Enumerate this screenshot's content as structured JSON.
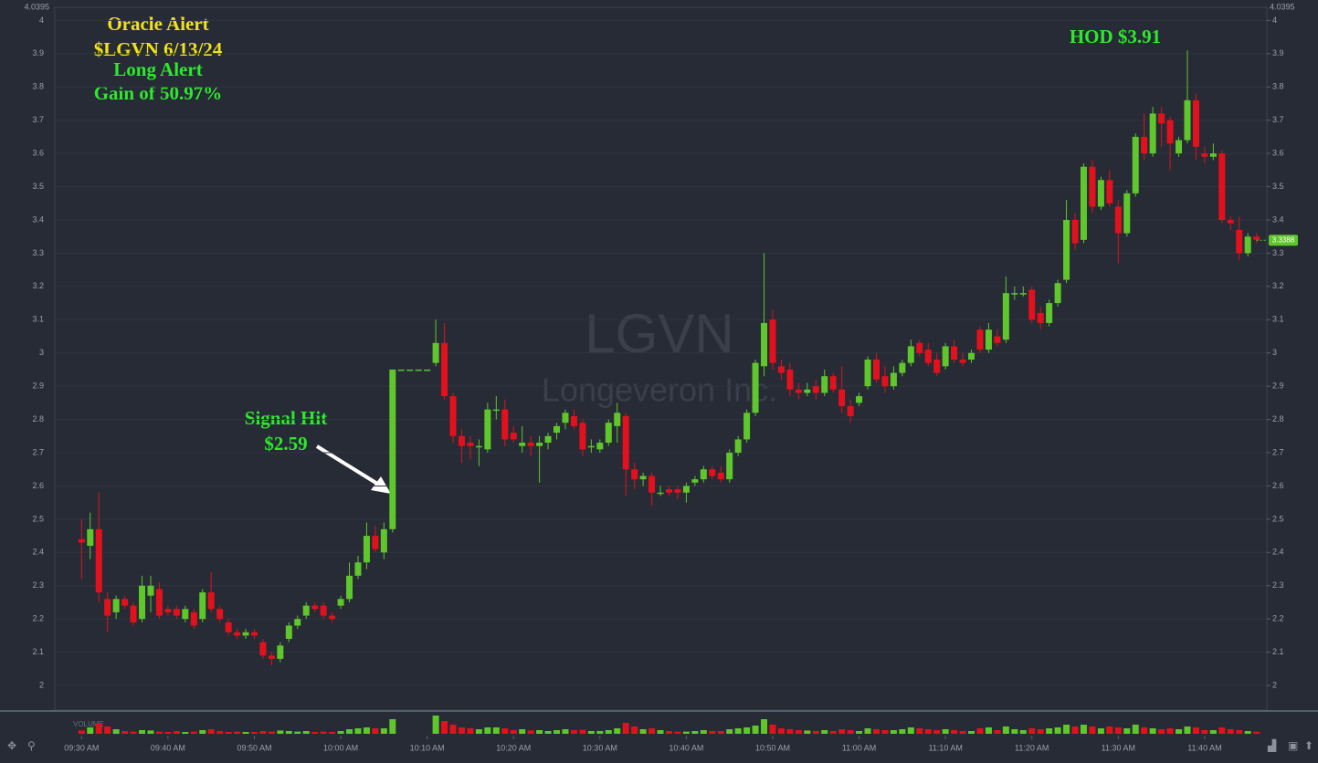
{
  "chart_data": {
    "type": "candlestick",
    "watermark": "LGVN",
    "watermark_sub": "Longeveron Inc.",
    "annotations": [
      "Oracle Alert",
      "$LGVN 6/13/24",
      "Long Alert",
      "Gain of 50.97%",
      "Signal Hit",
      "$2.59",
      "HOD $3.91"
    ],
    "volume_label": "VOLUME",
    "up_color": "#5fc72c",
    "down_color": "#e3111d",
    "ylim": [
      1.926,
      4.0395
    ],
    "yticks": [
      2,
      2.1,
      2.2,
      2.3,
      2.4,
      2.5,
      2.6,
      2.7,
      2.8,
      2.9,
      3,
      3.1,
      3.2,
      3.3,
      3.4,
      3.5,
      3.6,
      3.7,
      3.8,
      3.9,
      4
    ],
    "last_price": 3.3388,
    "xlim": [
      -3.1,
      137.2
    ],
    "xticks": [
      {
        "value": 0,
        "label": "09:30 AM"
      },
      {
        "value": 10,
        "label": "09:40 AM"
      },
      {
        "value": 20,
        "label": "09:50 AM"
      },
      {
        "value": 30,
        "label": "10:00 AM"
      },
      {
        "value": 40,
        "label": "10:10 AM"
      },
      {
        "value": 50,
        "label": "10:20 AM"
      },
      {
        "value": 60,
        "label": "10:30 AM"
      },
      {
        "value": 70,
        "label": "10:40 AM"
      },
      {
        "value": 80,
        "label": "10:50 AM"
      },
      {
        "value": 90,
        "label": "11:00 AM"
      },
      {
        "value": 100,
        "label": "11:10 AM"
      },
      {
        "value": 110,
        "label": "11:20 AM"
      },
      {
        "value": 120,
        "label": "11:30 AM"
      },
      {
        "value": 130,
        "label": "11:40 AM"
      }
    ],
    "candles": [
      [
        2.44,
        2.5,
        2.32,
        2.43
      ],
      [
        2.42,
        2.52,
        2.38,
        2.47
      ],
      [
        2.47,
        2.58,
        2.25,
        2.28
      ],
      [
        2.26,
        2.28,
        2.16,
        2.21
      ],
      [
        2.22,
        2.27,
        2.2,
        2.26
      ],
      [
        2.26,
        2.27,
        2.23,
        2.24
      ],
      [
        2.24,
        2.25,
        2.18,
        2.19
      ],
      [
        2.2,
        2.33,
        2.19,
        2.3
      ],
      [
        2.27,
        2.33,
        2.22,
        2.3
      ],
      [
        2.29,
        2.31,
        2.2,
        2.21
      ],
      [
        2.23,
        2.24,
        2.21,
        2.22
      ],
      [
        2.23,
        2.24,
        2.2,
        2.21
      ],
      [
        2.2,
        2.24,
        2.19,
        2.23
      ],
      [
        2.22,
        2.23,
        2.17,
        2.18
      ],
      [
        2.2,
        2.29,
        2.19,
        2.28
      ],
      [
        2.28,
        2.34,
        2.22,
        2.23
      ],
      [
        2.23,
        2.24,
        2.19,
        2.2
      ],
      [
        2.19,
        2.2,
        2.15,
        2.16
      ],
      [
        2.16,
        2.17,
        2.14,
        2.15
      ],
      [
        2.15,
        2.17,
        2.14,
        2.16
      ],
      [
        2.16,
        2.17,
        2.14,
        2.15
      ],
      [
        2.13,
        2.14,
        2.08,
        2.09
      ],
      [
        2.09,
        2.1,
        2.06,
        2.08
      ],
      [
        2.08,
        2.13,
        2.07,
        2.12
      ],
      [
        2.14,
        2.19,
        2.13,
        2.18
      ],
      [
        2.18,
        2.21,
        2.17,
        2.2
      ],
      [
        2.21,
        2.25,
        2.2,
        2.24
      ],
      [
        2.24,
        2.25,
        2.22,
        2.23
      ],
      [
        2.24,
        2.25,
        2.2,
        2.21
      ],
      [
        2.21,
        2.22,
        2.19,
        2.2
      ],
      [
        2.24,
        2.27,
        2.23,
        2.26
      ],
      [
        2.26,
        2.37,
        2.25,
        2.33
      ],
      [
        2.33,
        2.39,
        2.32,
        2.37
      ],
      [
        2.37,
        2.49,
        2.35,
        2.45
      ],
      [
        2.45,
        2.48,
        2.4,
        2.41
      ],
      [
        2.4,
        2.49,
        2.38,
        2.47
      ],
      [
        2.47,
        2.95,
        2.46,
        2.95
      ],
      [
        2.95,
        2.95,
        2.95,
        2.95
      ],
      [
        2.95,
        2.95,
        2.95,
        2.95
      ],
      [
        2.95,
        2.95,
        2.95,
        2.95
      ],
      [
        2.95,
        2.95,
        2.95,
        2.95
      ],
      [
        2.97,
        3.1,
        2.96,
        3.03
      ],
      [
        3.03,
        3.09,
        2.86,
        2.87
      ],
      [
        2.87,
        2.88,
        2.73,
        2.75
      ],
      [
        2.75,
        2.77,
        2.67,
        2.72
      ],
      [
        2.73,
        2.75,
        2.68,
        2.72
      ],
      [
        2.72,
        2.74,
        2.66,
        2.72
      ],
      [
        2.71,
        2.85,
        2.7,
        2.83
      ],
      [
        2.83,
        2.87,
        2.8,
        2.83
      ],
      [
        2.83,
        2.86,
        2.72,
        2.74
      ],
      [
        2.76,
        2.78,
        2.73,
        2.74
      ],
      [
        2.72,
        2.78,
        2.7,
        2.73
      ],
      [
        2.73,
        2.75,
        2.69,
        2.72
      ],
      [
        2.72,
        2.75,
        2.61,
        2.73
      ],
      [
        2.73,
        2.76,
        2.71,
        2.75
      ],
      [
        2.76,
        2.79,
        2.74,
        2.78
      ],
      [
        2.79,
        2.83,
        2.77,
        2.82
      ],
      [
        2.81,
        2.83,
        2.77,
        2.78
      ],
      [
        2.79,
        2.8,
        2.69,
        2.71
      ],
      [
        2.72,
        2.74,
        2.7,
        2.72
      ],
      [
        2.71,
        2.74,
        2.7,
        2.73
      ],
      [
        2.73,
        2.8,
        2.72,
        2.79
      ],
      [
        2.78,
        2.85,
        2.73,
        2.82
      ],
      [
        2.81,
        2.82,
        2.57,
        2.65
      ],
      [
        2.65,
        2.67,
        2.59,
        2.62
      ],
      [
        2.62,
        2.64,
        2.6,
        2.63
      ],
      [
        2.63,
        2.64,
        2.54,
        2.58
      ],
      [
        2.58,
        2.6,
        2.57,
        2.58
      ],
      [
        2.59,
        2.6,
        2.57,
        2.58
      ],
      [
        2.59,
        2.6,
        2.56,
        2.58
      ],
      [
        2.58,
        2.61,
        2.55,
        2.6
      ],
      [
        2.61,
        2.63,
        2.6,
        2.62
      ],
      [
        2.62,
        2.66,
        2.61,
        2.65
      ],
      [
        2.65,
        2.66,
        2.62,
        2.63
      ],
      [
        2.64,
        2.66,
        2.61,
        2.62
      ],
      [
        2.62,
        2.71,
        2.61,
        2.7
      ],
      [
        2.7,
        2.75,
        2.69,
        2.74
      ],
      [
        2.74,
        2.83,
        2.73,
        2.82
      ],
      [
        2.82,
        2.98,
        2.81,
        2.97
      ],
      [
        2.96,
        3.3,
        2.93,
        3.09
      ],
      [
        3.1,
        3.13,
        2.95,
        2.97
      ],
      [
        2.96,
        2.98,
        2.92,
        2.94
      ],
      [
        2.95,
        2.97,
        2.87,
        2.89
      ],
      [
        2.89,
        2.91,
        2.86,
        2.88
      ],
      [
        2.88,
        2.91,
        2.87,
        2.89
      ],
      [
        2.9,
        2.92,
        2.86,
        2.88
      ],
      [
        2.88,
        2.95,
        2.87,
        2.93
      ],
      [
        2.93,
        2.94,
        2.88,
        2.89
      ],
      [
        2.89,
        2.96,
        2.82,
        2.84
      ],
      [
        2.84,
        2.86,
        2.79,
        2.81
      ],
      [
        2.85,
        2.88,
        2.84,
        2.87
      ],
      [
        2.9,
        2.99,
        2.89,
        2.98
      ],
      [
        2.98,
        3.0,
        2.91,
        2.92
      ],
      [
        2.93,
        2.96,
        2.88,
        2.9
      ],
      [
        2.9,
        2.96,
        2.89,
        2.94
      ],
      [
        2.94,
        2.98,
        2.93,
        2.97
      ],
      [
        2.97,
        3.04,
        2.96,
        3.02
      ],
      [
        3.03,
        3.04,
        2.99,
        3.0
      ],
      [
        3.01,
        3.03,
        2.96,
        2.97
      ],
      [
        2.98,
        3.0,
        2.93,
        2.94
      ],
      [
        2.96,
        3.03,
        2.95,
        3.02
      ],
      [
        3.02,
        3.04,
        2.97,
        2.98
      ],
      [
        2.98,
        3.0,
        2.96,
        2.97
      ],
      [
        2.98,
        3.01,
        2.97,
        3.0
      ],
      [
        3.07,
        3.08,
        3.0,
        3.01
      ],
      [
        3.01,
        3.09,
        3.0,
        3.07
      ],
      [
        3.05,
        3.07,
        3.02,
        3.03
      ],
      [
        3.04,
        3.23,
        3.03,
        3.18
      ],
      [
        3.18,
        3.2,
        3.16,
        3.18
      ],
      [
        3.18,
        3.2,
        3.17,
        3.18
      ],
      [
        3.19,
        3.2,
        3.09,
        3.1
      ],
      [
        3.12,
        3.14,
        3.07,
        3.09
      ],
      [
        3.09,
        3.16,
        3.08,
        3.15
      ],
      [
        3.15,
        3.22,
        3.14,
        3.21
      ],
      [
        3.22,
        3.46,
        3.21,
        3.4
      ],
      [
        3.4,
        3.42,
        3.31,
        3.33
      ],
      [
        3.34,
        3.57,
        3.33,
        3.56
      ],
      [
        3.56,
        3.58,
        3.42,
        3.44
      ],
      [
        3.44,
        3.53,
        3.43,
        3.52
      ],
      [
        3.52,
        3.55,
        3.44,
        3.45
      ],
      [
        3.44,
        3.46,
        3.27,
        3.36
      ],
      [
        3.36,
        3.49,
        3.35,
        3.48
      ],
      [
        3.48,
        3.66,
        3.47,
        3.65
      ],
      [
        3.65,
        3.72,
        3.58,
        3.6
      ],
      [
        3.6,
        3.74,
        3.59,
        3.72
      ],
      [
        3.72,
        3.74,
        3.62,
        3.69
      ],
      [
        3.7,
        3.71,
        3.55,
        3.63
      ],
      [
        3.6,
        3.65,
        3.59,
        3.64
      ],
      [
        3.64,
        3.91,
        3.63,
        3.76
      ],
      [
        3.76,
        3.78,
        3.58,
        3.62
      ],
      [
        3.6,
        3.62,
        3.57,
        3.59
      ],
      [
        3.59,
        3.63,
        3.58,
        3.6
      ],
      [
        3.6,
        3.61,
        3.39,
        3.4
      ],
      [
        3.4,
        3.41,
        3.37,
        3.39
      ],
      [
        3.37,
        3.41,
        3.28,
        3.3
      ],
      [
        3.3,
        3.36,
        3.29,
        3.35
      ],
      [
        3.35,
        3.36,
        3.33,
        3.34
      ]
    ],
    "volume_ylim": [
      0,
      1
    ],
    "volume": [
      0.18,
      0.35,
      0.55,
      0.4,
      0.25,
      0.15,
      0.12,
      0.2,
      0.18,
      0.12,
      0.1,
      0.15,
      0.1,
      0.12,
      0.2,
      0.25,
      0.15,
      0.1,
      0.12,
      0.1,
      0.1,
      0.15,
      0.12,
      0.18,
      0.15,
      0.12,
      0.15,
      0.1,
      0.12,
      0.1,
      0.15,
      0.25,
      0.3,
      0.35,
      0.3,
      0.3,
      0.8,
      0,
      0,
      0,
      0,
      1.0,
      0.7,
      0.5,
      0.35,
      0.3,
      0.25,
      0.35,
      0.35,
      0.3,
      0.2,
      0.25,
      0.18,
      0.2,
      0.15,
      0.2,
      0.25,
      0.2,
      0.22,
      0.15,
      0.15,
      0.2,
      0.3,
      0.6,
      0.4,
      0.25,
      0.3,
      0.2,
      0.15,
      0.12,
      0.12,
      0.15,
      0.2,
      0.15,
      0.15,
      0.25,
      0.3,
      0.35,
      0.45,
      0.8,
      0.5,
      0.3,
      0.25,
      0.2,
      0.18,
      0.15,
      0.2,
      0.15,
      0.25,
      0.2,
      0.15,
      0.3,
      0.25,
      0.2,
      0.2,
      0.25,
      0.35,
      0.3,
      0.25,
      0.2,
      0.25,
      0.2,
      0.15,
      0.15,
      0.3,
      0.35,
      0.2,
      0.4,
      0.25,
      0.2,
      0.3,
      0.25,
      0.3,
      0.35,
      0.5,
      0.4,
      0.5,
      0.4,
      0.3,
      0.4,
      0.35,
      0.3,
      0.5,
      0.35,
      0.3,
      0.25,
      0.3,
      0.25,
      0.4,
      0.35,
      0.2,
      0.2,
      0.35,
      0.25,
      0.2,
      0.15,
      0.12
    ]
  }
}
